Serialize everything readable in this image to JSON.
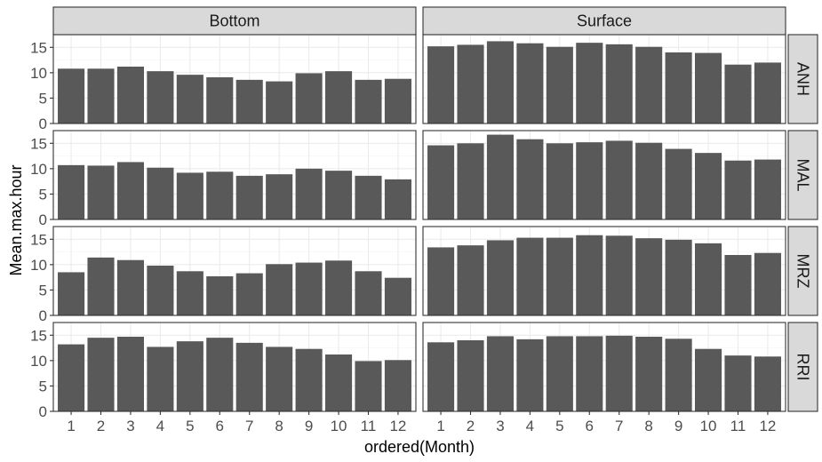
{
  "chart_data": {
    "type": "bar",
    "layout": "facet-grid",
    "xlabel": "ordered(Month)",
    "ylabel": "Mean.max.hour",
    "categories": [
      "1",
      "2",
      "3",
      "4",
      "5",
      "6",
      "7",
      "8",
      "9",
      "10",
      "11",
      "12"
    ],
    "ylim": [
      0,
      17.5
    ],
    "yticks": [
      "0",
      "5",
      "10",
      "15"
    ],
    "grid": true,
    "col_facets": [
      "Bottom",
      "Surface"
    ],
    "row_facets": [
      "ANH",
      "MAL",
      "MRZ",
      "RRI"
    ],
    "colors": {
      "bar": "#595959",
      "strip_fill": "#d9d9d9",
      "panel_border": "#333333",
      "grid_major": "#ebebeb",
      "grid_minor": "#f5f5f5"
    },
    "panels": [
      {
        "row": "ANH",
        "col": "Bottom",
        "values": [
          10.8,
          10.8,
          11.2,
          10.3,
          9.6,
          9.1,
          8.6,
          8.3,
          9.9,
          10.3,
          8.6,
          8.8
        ]
      },
      {
        "row": "ANH",
        "col": "Surface",
        "values": [
          15.2,
          15.5,
          16.2,
          15.8,
          15.1,
          15.9,
          15.6,
          15.1,
          14.0,
          13.9,
          11.6,
          12.0
        ]
      },
      {
        "row": "MAL",
        "col": "Bottom",
        "values": [
          10.7,
          10.6,
          11.3,
          10.2,
          9.2,
          9.4,
          8.6,
          8.9,
          10.0,
          9.6,
          8.6,
          7.9
        ]
      },
      {
        "row": "MAL",
        "col": "Surface",
        "values": [
          14.6,
          15.0,
          16.7,
          15.8,
          15.0,
          15.2,
          15.5,
          15.1,
          13.9,
          13.1,
          11.6,
          11.8
        ]
      },
      {
        "row": "MRZ",
        "col": "Bottom",
        "values": [
          8.5,
          11.4,
          10.9,
          9.8,
          8.7,
          7.7,
          8.3,
          10.1,
          10.4,
          10.8,
          8.7,
          7.4
        ]
      },
      {
        "row": "MRZ",
        "col": "Surface",
        "values": [
          13.4,
          13.8,
          14.8,
          15.3,
          15.3,
          15.8,
          15.7,
          15.2,
          14.9,
          14.2,
          11.9,
          12.3
        ]
      },
      {
        "row": "RRI",
        "col": "Bottom",
        "values": [
          13.2,
          14.5,
          14.7,
          12.7,
          13.8,
          14.5,
          13.5,
          12.7,
          12.3,
          11.2,
          9.9,
          10.1
        ]
      },
      {
        "row": "RRI",
        "col": "Surface",
        "values": [
          13.6,
          14.0,
          14.8,
          14.2,
          14.8,
          14.8,
          14.9,
          14.7,
          14.3,
          12.3,
          11.0,
          10.8
        ]
      }
    ]
  }
}
